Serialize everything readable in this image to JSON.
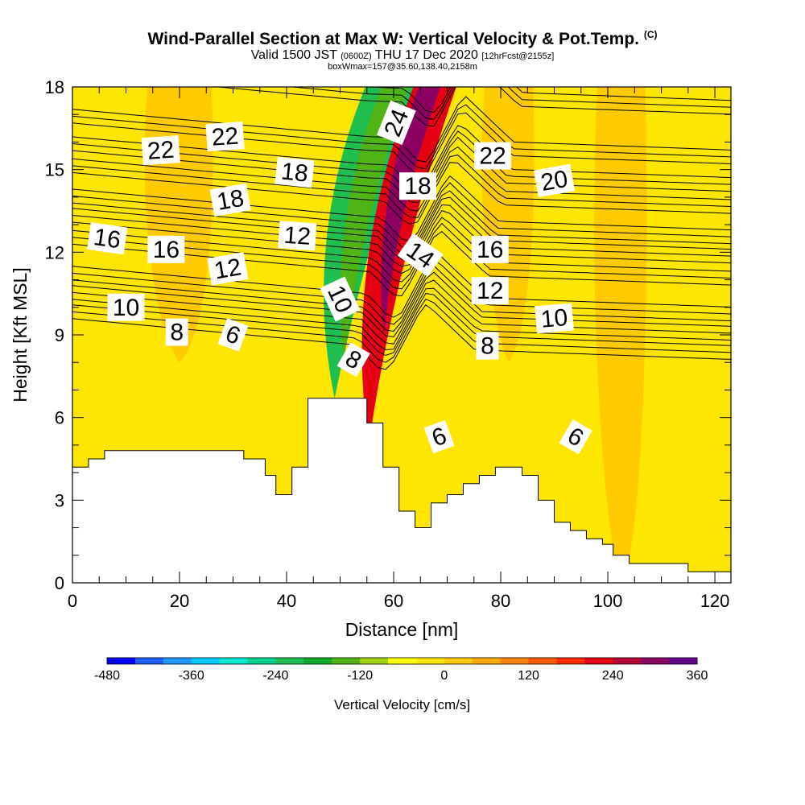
{
  "header": {
    "title": "Wind-Parallel Section at Max W: Vertical Velocity & Pot.Temp.",
    "copyright": "(C)",
    "valid_prefix": "Valid 1500 JST",
    "valid_z": "(0600Z)",
    "valid_date": "THU 17 Dec 2020",
    "forecast": "[12hrFcst@2155z]",
    "box_info": "boxWmax=157@35.60,138.40,2158m"
  },
  "chart_data": {
    "type": "heatmap",
    "title": "Wind-Parallel Section at Max W: Vertical Velocity & Pot.Temp.",
    "xlabel": "Distance [nm]",
    "ylabel": "Height [Kft MSL]",
    "xlim": [
      0,
      123
    ],
    "ylim": [
      0,
      18
    ],
    "x_ticks": [
      "0",
      "20",
      "40",
      "60",
      "80",
      "100",
      "120"
    ],
    "y_ticks": [
      "0",
      "3",
      "6",
      "9",
      "12",
      "15",
      "18"
    ],
    "colorbar": {
      "label": "Vertical Velocity [cm/s]",
      "tick_labels": [
        "-480",
        "-360",
        "-240",
        "-120",
        "0",
        "120",
        "240",
        "360"
      ],
      "colors": [
        "#0000ff",
        "#1e5cff",
        "#1f96ff",
        "#00c8ff",
        "#00e6d2",
        "#00d28c",
        "#1ebe50",
        "#10aa28",
        "#50b414",
        "#a0d20a",
        "#ffff00",
        "#ffe600",
        "#ffc800",
        "#ffaa00",
        "#ff8200",
        "#ff5a00",
        "#ff2800",
        "#e60014",
        "#b40032",
        "#8c0064",
        "#64008c"
      ]
    },
    "terrain_profile": {
      "x": [
        0,
        3,
        6,
        26,
        32,
        36,
        38,
        41,
        44,
        55,
        58,
        61,
        64,
        67,
        70,
        73,
        76,
        79,
        84,
        87,
        90,
        93,
        96,
        99,
        101,
        104,
        110,
        115,
        123
      ],
      "height": [
        4.2,
        4.5,
        4.8,
        4.8,
        4.5,
        3.9,
        3.2,
        4.2,
        6.7,
        5.8,
        4.2,
        2.6,
        2.0,
        2.9,
        3.2,
        3.6,
        3.9,
        4.2,
        3.9,
        3.0,
        2.2,
        1.9,
        1.6,
        1.4,
        1.0,
        0.7,
        0.7,
        0.4,
        0.5
      ]
    },
    "velocity_regions": [
      {
        "shape": "band",
        "x": [
          49,
          59
        ],
        "y": [
          6.7,
          18
        ],
        "value": -200,
        "color": "#1ebe50"
      },
      {
        "shape": "band",
        "x": [
          52,
          57
        ],
        "y": [
          8,
          18
        ],
        "value": -150,
        "color": "#50b414"
      },
      {
        "shape": "band",
        "x": [
          58,
          66
        ],
        "y": [
          5,
          18
        ],
        "value": 240,
        "color": "#e60014"
      },
      {
        "shape": "band",
        "x": [
          59,
          63
        ],
        "y": [
          9,
          18
        ],
        "value": 300,
        "color": "#8c0064"
      },
      {
        "shape": "patch",
        "x": [
          14,
          26
        ],
        "y": [
          8,
          18
        ],
        "value": 40,
        "color": "#ffc800"
      },
      {
        "shape": "patch",
        "x": [
          77,
          86
        ],
        "y": [
          8,
          18
        ],
        "value": 40,
        "color": "#ffc800"
      },
      {
        "shape": "patch",
        "x": [
          98,
          107
        ],
        "y": [
          0,
          18
        ],
        "value": 40,
        "color": "#ffc800"
      }
    ],
    "theta_contours": [
      {
        "level": "6",
        "base_height": 8.6
      },
      {
        "level": "8",
        "base_height": 9.3
      },
      {
        "level": "10",
        "base_height": 10.0
      },
      {
        "level": "12",
        "base_height": 11.3
      },
      {
        "level": "14",
        "base_height": 12.1
      },
      {
        "level": "16",
        "base_height": 12.8
      },
      {
        "level": "18",
        "base_height": 13.9
      },
      {
        "level": "20",
        "base_height": 14.7
      },
      {
        "level": "22",
        "base_height": 15.7
      },
      {
        "level": "24",
        "base_height": 17.5
      }
    ],
    "contour_labels": [
      {
        "text": "22",
        "x": 16.5,
        "y": 15.7,
        "angle": -4
      },
      {
        "text": "22",
        "x": 28.5,
        "y": 16.2,
        "angle": -4
      },
      {
        "text": "18",
        "x": 41.5,
        "y": 14.9,
        "angle": 6
      },
      {
        "text": "24",
        "x": 60.5,
        "y": 16.7,
        "angle": -68
      },
      {
        "text": "22",
        "x": 78.5,
        "y": 15.5,
        "angle": 0
      },
      {
        "text": "20",
        "x": 90,
        "y": 14.6,
        "angle": -10
      },
      {
        "text": "18",
        "x": 29.5,
        "y": 13.9,
        "angle": -10
      },
      {
        "text": "18",
        "x": 64.5,
        "y": 14.4,
        "angle": 0
      },
      {
        "text": "16",
        "x": 6.5,
        "y": 12.5,
        "angle": 8
      },
      {
        "text": "16",
        "x": 17.5,
        "y": 12.1,
        "angle": 0
      },
      {
        "text": "12",
        "x": 42,
        "y": 12.6,
        "angle": 4
      },
      {
        "text": "14",
        "x": 65,
        "y": 11.9,
        "angle": 35
      },
      {
        "text": "16",
        "x": 78,
        "y": 12.1,
        "angle": 0
      },
      {
        "text": "12",
        "x": 29,
        "y": 11.4,
        "angle": -10
      },
      {
        "text": "10",
        "x": 10,
        "y": 10.0,
        "angle": 0
      },
      {
        "text": "10",
        "x": 50,
        "y": 10.3,
        "angle": 65
      },
      {
        "text": "12",
        "x": 78,
        "y": 10.6,
        "angle": 0
      },
      {
        "text": "10",
        "x": 90,
        "y": 9.6,
        "angle": -5
      },
      {
        "text": "8",
        "x": 19.5,
        "y": 9.1,
        "angle": 0
      },
      {
        "text": "6",
        "x": 30,
        "y": 9.0,
        "angle": 20
      },
      {
        "text": "8",
        "x": 77.5,
        "y": 8.6,
        "angle": 0
      },
      {
        "text": "8",
        "x": 52.5,
        "y": 8.1,
        "angle": 30
      },
      {
        "text": "6",
        "x": 68.5,
        "y": 5.3,
        "angle": -20
      },
      {
        "text": "6",
        "x": 94,
        "y": 5.3,
        "angle": 30
      }
    ]
  }
}
